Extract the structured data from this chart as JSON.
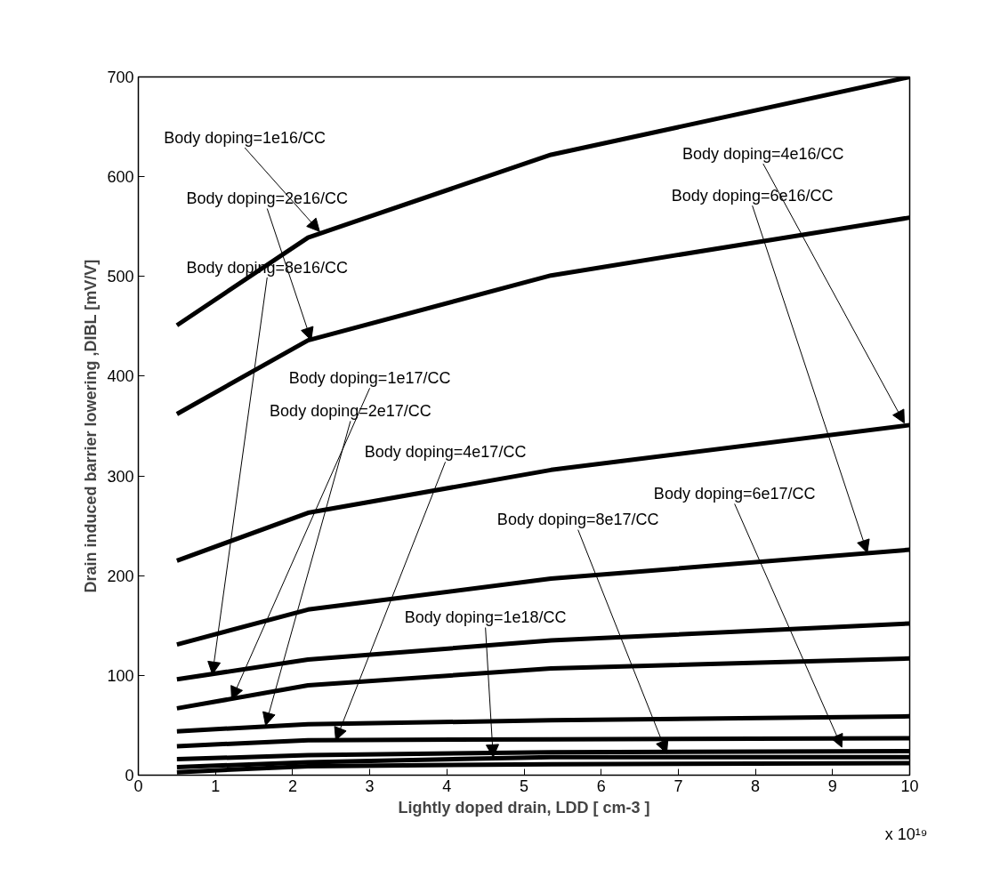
{
  "chart_data": {
    "type": "line",
    "xlabel": "Lightly doped drain, LDD [ cm-3 ]",
    "ylabel": "Drain induced barrier lowering ,DIBL [mV/V]",
    "x": [
      0.5,
      2.2,
      5.35,
      10
    ],
    "series": [
      {
        "color": "#000000",
        "values": [
          451,
          539,
          622,
          700
        ]
      },
      {
        "color": "#000000",
        "values": [
          362,
          436,
          501,
          559
        ]
      },
      {
        "color": "#000000",
        "values": [
          215,
          263,
          306,
          351
        ]
      },
      {
        "color": "#000000",
        "values": [
          131,
          166,
          197,
          226
        ]
      },
      {
        "color": "#000000",
        "values": [
          96,
          116,
          135,
          152
        ]
      },
      {
        "color": "#000000",
        "values": [
          67,
          90,
          107,
          117
        ]
      },
      {
        "color": "#000000",
        "values": [
          44,
          51,
          55,
          59
        ]
      },
      {
        "color": "#000000",
        "values": [
          29,
          35,
          36,
          37
        ]
      },
      {
        "color": "#000000",
        "values": [
          16,
          20,
          23,
          24
        ]
      },
      {
        "color": "#000000",
        "values": [
          8,
          13,
          18,
          18
        ]
      },
      {
        "color": "#000000",
        "values": [
          3,
          9,
          11,
          12
        ]
      }
    ],
    "xlim": [
      0,
      10
    ],
    "ylim": [
      0,
      700
    ],
    "xticks": [
      0,
      1,
      2,
      3,
      4,
      5,
      6,
      7,
      8,
      9,
      10
    ],
    "yticks": [
      0,
      100,
      200,
      300,
      400,
      500,
      600,
      700
    ],
    "marker": "none",
    "line_style": "solid",
    "annotations": [
      {
        "text": "Body doping=1e16/CC",
        "x": 2.35,
        "y": 545
      },
      {
        "text": "Body doping=2e16/CC",
        "x": 2.24,
        "y": 436
      },
      {
        "text": "Body doping=8e16/CC",
        "x": 0.96,
        "y": 101
      },
      {
        "text": "Body doping=1e17/CC",
        "x": 1.21,
        "y": 76
      },
      {
        "text": "Body doping=2e17/CC",
        "x": 1.65,
        "y": 50
      },
      {
        "text": "Body doping=4e17/CC",
        "x": 2.56,
        "y": 35
      },
      {
        "text": "Body doping=4e16/CC",
        "x": 9.93,
        "y": 353
      },
      {
        "text": "Body doping=6e16/CC",
        "x": 9.45,
        "y": 223
      },
      {
        "text": "Body doping=6e17/CC",
        "x": 9.12,
        "y": 28
      },
      {
        "text": "Body doping=8e17/CC",
        "x": 6.85,
        "y": 22
      },
      {
        "text": "Body doping=1e18/CC",
        "x": 4.6,
        "y": 18
      },
      "x 10¹⁹"
    ]
  }
}
